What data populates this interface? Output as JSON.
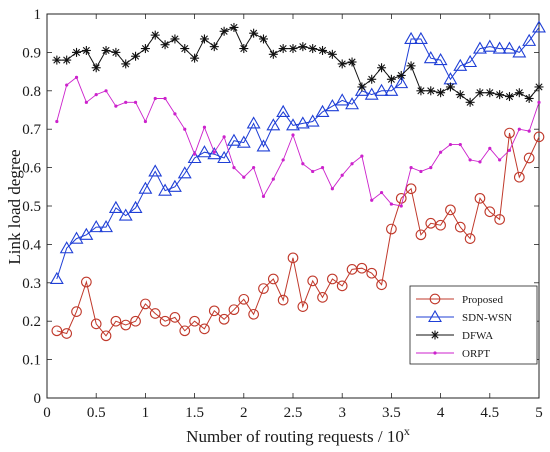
{
  "chart_data": {
    "type": "line",
    "xlabel": "Number of routing requests / 10",
    "xlabel_exponent": "x",
    "ylabel": "Link load degree",
    "xlim": [
      0,
      5
    ],
    "ylim": [
      0,
      1
    ],
    "x_ticks": [
      0,
      0.5,
      1,
      1.5,
      2,
      2.5,
      3,
      3.5,
      4,
      4.5,
      5
    ],
    "y_ticks": [
      0,
      0.1,
      0.2,
      0.3,
      0.4,
      0.5,
      0.6,
      0.7,
      0.8,
      0.9,
      1
    ],
    "x_tick_labels": [
      "0",
      "0.5",
      "1",
      "1.5",
      "2",
      "2.5",
      "3",
      "3.5",
      "4",
      "4.5",
      "5"
    ],
    "y_tick_labels": [
      "0",
      "0.1",
      "0.2",
      "0.3",
      "0.4",
      "0.5",
      "0.6",
      "0.7",
      "0.8",
      "0.9",
      "1"
    ],
    "grid": false,
    "legend_position": "bottom-right",
    "x": [
      0.1,
      0.2,
      0.3,
      0.4,
      0.5,
      0.6,
      0.7,
      0.8,
      0.9,
      1.0,
      1.1,
      1.2,
      1.3,
      1.4,
      1.5,
      1.6,
      1.7,
      1.8,
      1.9,
      2.0,
      2.1,
      2.2,
      2.3,
      2.4,
      2.5,
      2.6,
      2.7,
      2.8,
      2.9,
      3.0,
      3.1,
      3.2,
      3.3,
      3.4,
      3.5,
      3.6,
      3.7,
      3.8,
      3.9,
      4.0,
      4.1,
      4.2,
      4.3,
      4.4,
      4.5,
      4.6,
      4.7,
      4.8,
      4.9,
      5.0
    ],
    "series": [
      {
        "name": "Proposed",
        "color": "#c0392b",
        "marker": "circle",
        "values": [
          0.175,
          0.168,
          0.225,
          0.302,
          0.193,
          0.162,
          0.2,
          0.19,
          0.2,
          0.245,
          0.22,
          0.2,
          0.21,
          0.175,
          0.2,
          0.18,
          0.227,
          0.205,
          0.23,
          0.257,
          0.218,
          0.285,
          0.31,
          0.255,
          0.365,
          0.238,
          0.305,
          0.262,
          0.31,
          0.292,
          0.335,
          0.338,
          0.325,
          0.295,
          0.44,
          0.52,
          0.545,
          0.425,
          0.455,
          0.45,
          0.49,
          0.445,
          0.415,
          0.52,
          0.485,
          0.465,
          0.69,
          0.575,
          0.625,
          0.68
        ]
      },
      {
        "name": "SDN-WSN",
        "color": "#1f3fd6",
        "marker": "triangle",
        "values": [
          0.31,
          0.39,
          0.415,
          0.425,
          0.445,
          0.445,
          0.495,
          0.475,
          0.495,
          0.545,
          0.59,
          0.54,
          0.55,
          0.585,
          0.625,
          0.64,
          0.635,
          0.625,
          0.67,
          0.665,
          0.715,
          0.655,
          0.71,
          0.745,
          0.71,
          0.715,
          0.72,
          0.745,
          0.76,
          0.775,
          0.765,
          0.8,
          0.79,
          0.8,
          0.8,
          0.82,
          0.935,
          0.935,
          0.885,
          0.88,
          0.83,
          0.865,
          0.875,
          0.91,
          0.915,
          0.91,
          0.91,
          0.9,
          0.93,
          0.965
        ]
      },
      {
        "name": "DFWA",
        "color": "#111111",
        "marker": "star",
        "values": [
          0.88,
          0.88,
          0.9,
          0.905,
          0.86,
          0.905,
          0.9,
          0.87,
          0.89,
          0.91,
          0.945,
          0.92,
          0.935,
          0.91,
          0.885,
          0.935,
          0.915,
          0.955,
          0.965,
          0.91,
          0.95,
          0.935,
          0.895,
          0.91,
          0.91,
          0.915,
          0.91,
          0.905,
          0.895,
          0.87,
          0.875,
          0.81,
          0.83,
          0.86,
          0.83,
          0.84,
          0.865,
          0.8,
          0.8,
          0.795,
          0.81,
          0.79,
          0.77,
          0.795,
          0.795,
          0.79,
          0.785,
          0.795,
          0.78,
          0.81
        ]
      },
      {
        "name": "ORPT",
        "color": "#cc22cc",
        "marker": "dot",
        "values": [
          0.72,
          0.815,
          0.835,
          0.77,
          0.79,
          0.8,
          0.76,
          0.77,
          0.77,
          0.72,
          0.78,
          0.78,
          0.74,
          0.7,
          0.635,
          0.705,
          0.64,
          0.68,
          0.6,
          0.575,
          0.6,
          0.525,
          0.57,
          0.62,
          0.685,
          0.61,
          0.59,
          0.6,
          0.545,
          0.58,
          0.61,
          0.63,
          0.515,
          0.535,
          0.505,
          0.5,
          0.6,
          0.59,
          0.6,
          0.64,
          0.66,
          0.66,
          0.62,
          0.615,
          0.65,
          0.62,
          0.645,
          0.7,
          0.695,
          0.77
        ]
      }
    ]
  }
}
